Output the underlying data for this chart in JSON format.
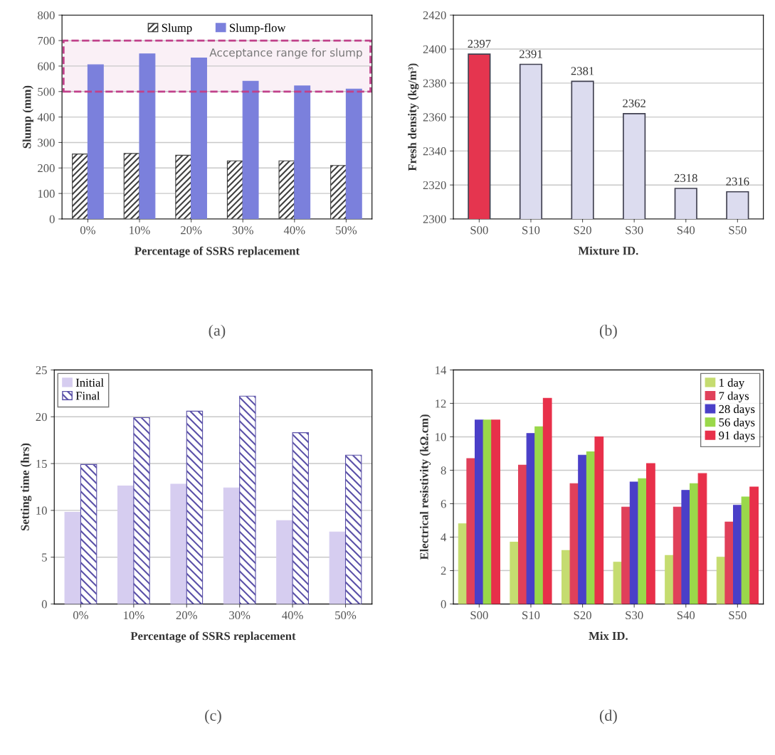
{
  "chart_data": [
    {
      "type": "bar",
      "xlabel": "Percentage of SSRS replacement",
      "ylabel": "Slump (mm)",
      "categories": [
        "0%",
        "10%",
        "20%",
        "30%",
        "40%",
        "50%"
      ],
      "series": [
        {
          "name": "Slump",
          "color": "#404040",
          "values": [
            255,
            257,
            250,
            228,
            228,
            210
          ]
        },
        {
          "name": "Slump-flow",
          "color": "#7b80dc",
          "values": [
            605,
            648,
            632,
            540,
            522,
            510
          ]
        }
      ],
      "bands": [
        {
          "axis": "y",
          "from": 500,
          "to": 700,
          "label": "Acceptance range for slump",
          "color": "#c0408a"
        }
      ],
      "ylim": [
        0,
        800
      ],
      "yticks": [
        0,
        100,
        200,
        300,
        400,
        500,
        600,
        700,
        800
      ],
      "grid": "y",
      "legend": "top",
      "annotations": [
        "(a)"
      ]
    },
    {
      "type": "bar",
      "xlabel": "Mixture ID.",
      "ylabel": "Fresh density (kg/m³)",
      "categories": [
        "S00",
        "S10",
        "S20",
        "S30",
        "S40",
        "S50"
      ],
      "values": [
        2397,
        2391,
        2381,
        2362,
        2318,
        2316
      ],
      "colors": [
        "#e5354f",
        "#dcdcef",
        "#dcdcef",
        "#dcdcef",
        "#dcdcef",
        "#dcdcef"
      ],
      "data_labels": true,
      "ylim": [
        2300,
        2420
      ],
      "yticks": [
        2300,
        2320,
        2340,
        2360,
        2380,
        2400,
        2420
      ],
      "grid": "y",
      "annotations": [
        "(b)"
      ]
    },
    {
      "type": "bar",
      "xlabel": "Percentage of SSRS replacement",
      "ylabel": "Setting time (hrs)",
      "categories": [
        "0%",
        "10%",
        "20%",
        "30%",
        "40%",
        "50%"
      ],
      "series": [
        {
          "name": "Initial",
          "color": "#d6cdf0",
          "values": [
            9.8,
            12.6,
            12.8,
            12.4,
            8.9,
            7.7
          ]
        },
        {
          "name": "Final",
          "color": "#5a50a8",
          "values": [
            14.9,
            19.9,
            20.6,
            22.2,
            18.3,
            15.9
          ]
        }
      ],
      "ylim": [
        0,
        25
      ],
      "yticks": [
        0,
        5,
        10,
        15,
        20,
        25
      ],
      "grid": "y",
      "legend": "top left",
      "annotations": [
        "(c)"
      ]
    },
    {
      "type": "bar",
      "xlabel": "Mix ID.",
      "ylabel": "Electrical resistivity (kΩ.cm)",
      "categories": [
        "S00",
        "S10",
        "S20",
        "S30",
        "S40",
        "S50"
      ],
      "series": [
        {
          "name": "1 day",
          "color": "#c5dc70",
          "values": [
            4.8,
            3.7,
            3.2,
            2.5,
            2.9,
            2.8
          ]
        },
        {
          "name": "7 days",
          "color": "#e0405a",
          "values": [
            8.7,
            8.3,
            7.2,
            5.8,
            5.8,
            4.9
          ]
        },
        {
          "name": "28 days",
          "color": "#4a3fc8",
          "values": [
            11.0,
            10.2,
            8.9,
            7.3,
            6.8,
            5.9
          ]
        },
        {
          "name": "56 days",
          "color": "#9ad84a",
          "values": [
            11.0,
            10.6,
            9.1,
            7.5,
            7.2,
            6.4
          ]
        },
        {
          "name": "91 days",
          "color": "#e8304a",
          "values": [
            11.0,
            12.3,
            10.0,
            8.4,
            7.8,
            7.0
          ]
        }
      ],
      "ylim": [
        0,
        14
      ],
      "yticks": [
        0,
        2,
        4,
        6,
        8,
        10,
        12,
        14
      ],
      "grid": "y",
      "legend": "top right",
      "annotations": [
        "(d)"
      ]
    }
  ]
}
